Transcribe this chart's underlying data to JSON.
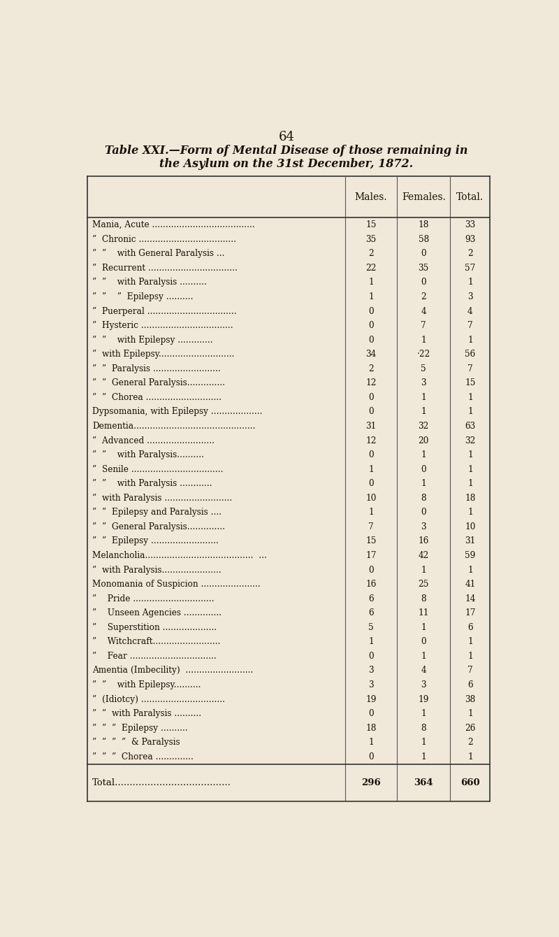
{
  "page_number": "64",
  "title_line1": "Table XXI.—Form of Mental Disease of those remaining in",
  "title_line2": "the Asylum on the 31st December, 1872.",
  "col_headers": [
    "Males.",
    "Females.",
    "Total."
  ],
  "rows": [
    [
      "Mania, Acute ......................................",
      "15",
      "18",
      "33"
    ],
    [
      "”  Chronic ....................................",
      "35",
      "58",
      "93"
    ],
    [
      "”  ”    with General Paralysis ...",
      "2",
      "0",
      "2"
    ],
    [
      "”  Recurrent .................................",
      "22",
      "35",
      "57"
    ],
    [
      "”  ”    with Paralysis ..........",
      "1",
      "0",
      "1"
    ],
    [
      "”  ”    ”  Epilepsy ..........",
      "1",
      "2",
      "3"
    ],
    [
      "”  Puerperal .................................",
      "0",
      "4",
      "4"
    ],
    [
      "”  Hysteric ..................................",
      "0",
      "7",
      "7"
    ],
    [
      "”  ”    with Epilepsy .............",
      "0",
      "1",
      "1"
    ],
    [
      "”  with Epilepsy............................",
      "34",
      "·22",
      "56"
    ],
    [
      "”  ”  Paralysis .........................",
      "2",
      "5",
      "7"
    ],
    [
      "”  ”  General Paralysis..............",
      "12",
      "3",
      "15"
    ],
    [
      "”  ”  Chorea ............................",
      "0",
      "1",
      "1"
    ],
    [
      "Dypsomania, with Epilepsy ...................",
      "0",
      "1",
      "1"
    ],
    [
      "Dementia.............................................",
      "31",
      "32",
      "63"
    ],
    [
      "”  Advanced .........................",
      "12",
      "20",
      "32"
    ],
    [
      "”  ”    with Paralysis..........",
      "0",
      "1",
      "1"
    ],
    [
      "”  Senile ..................................",
      "1",
      "0",
      "1"
    ],
    [
      "”  ”    with Paralysis ............",
      "0",
      "1",
      "1"
    ],
    [
      "”  with Paralysis .........................",
      "10",
      "8",
      "18"
    ],
    [
      "”  ”  Epilepsy and Paralysis ....",
      "1",
      "0",
      "1"
    ],
    [
      "”  ”  General Paralysis..............",
      "7",
      "3",
      "10"
    ],
    [
      "”  ”  Epilepsy .........................",
      "15",
      "16",
      "31"
    ],
    [
      "Melancholia........................................  ...",
      "17",
      "42",
      "59"
    ],
    [
      "”  with Paralysis......................",
      "0",
      "1",
      "1"
    ],
    [
      "Monomania of Suspicion ......................",
      "16",
      "25",
      "41"
    ],
    [
      "”    Pride ..............................",
      "6",
      "8",
      "14"
    ],
    [
      "”    Unseen Agencies ..............",
      "6",
      "11",
      "17"
    ],
    [
      "”    Superstition ....................",
      "5",
      "1",
      "6"
    ],
    [
      "”    Witchcraft.........................",
      "1",
      "0",
      "1"
    ],
    [
      "”    Fear ................................",
      "0",
      "1",
      "1"
    ],
    [
      "Amentia (Imbecility)  .........................",
      "3",
      "4",
      "7"
    ],
    [
      "”  ”    with Epilepsy..........",
      "3",
      "3",
      "6"
    ],
    [
      "”  (Idiotcy) ...............................",
      "19",
      "19",
      "38"
    ],
    [
      "”  ”  with Paralysis ..........",
      "0",
      "1",
      "1"
    ],
    [
      "”  ”  ”  Epilepsy ..........",
      "18",
      "8",
      "26"
    ],
    [
      "”  ”  ”  ”  & Paralysis",
      "1",
      "1",
      "2"
    ],
    [
      "”  ”  ”  Chorea ..............",
      "0",
      "1",
      "1"
    ]
  ],
  "total_row": [
    "Total.......................................",
    "296",
    "364",
    "660"
  ],
  "bg_color": "#f0e8d8",
  "text_color": "#1a1008",
  "line_color": "#555555",
  "header_line_color": "#333333"
}
